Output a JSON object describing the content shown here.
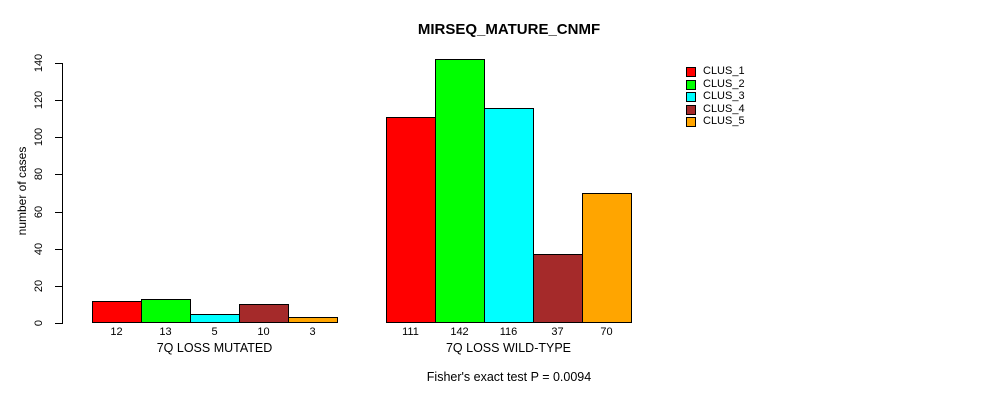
{
  "footnote": "Fisher's exact test P = 0.0094",
  "chart_data": {
    "type": "bar",
    "title": "MIRSEQ_MATURE_CNMF",
    "xlabel": "",
    "ylabel": "number of cases",
    "ylim": [
      0,
      140
    ],
    "yticks": [
      0,
      20,
      40,
      60,
      80,
      100,
      120,
      140
    ],
    "grid": false,
    "bar_value_labels": true,
    "legend_position": "top-right",
    "groups": [
      "7Q LOSS MUTATED",
      "7Q LOSS WILD-TYPE"
    ],
    "series": [
      {
        "name": "CLUS_1",
        "color": "#FF0000",
        "values": [
          12,
          111
        ]
      },
      {
        "name": "CLUS_2",
        "color": "#00FF00",
        "values": [
          13,
          142
        ]
      },
      {
        "name": "CLUS_3",
        "color": "#00FFFF",
        "values": [
          5,
          116
        ]
      },
      {
        "name": "CLUS_4",
        "color": "#A52A2A",
        "values": [
          10,
          37
        ]
      },
      {
        "name": "CLUS_5",
        "color": "#FFA500",
        "values": [
          3,
          70
        ]
      }
    ],
    "annotation": "Fisher's exact test P = 0.0094"
  }
}
